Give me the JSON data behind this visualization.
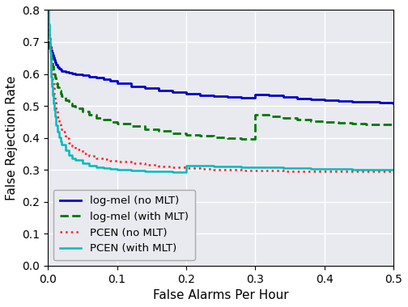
{
  "title": "",
  "xlabel": "False Alarms Per Hour",
  "ylabel": "False Rejection Rate",
  "xlim": [
    0.0,
    0.5
  ],
  "ylim": [
    0.0,
    0.8
  ],
  "xticks": [
    0.0,
    0.1,
    0.2,
    0.3,
    0.4,
    0.5
  ],
  "yticks": [
    0.0,
    0.1,
    0.2,
    0.3,
    0.4,
    0.5,
    0.6,
    0.7,
    0.8
  ],
  "background_color": "#e8eaf0",
  "grid_color": "#ffffff",
  "lines": [
    {
      "label": "log-mel (no MLT)",
      "color": "#0000cc",
      "linestyle": "solid",
      "linewidth": 2.0,
      "x": [
        0.0,
        0.001,
        0.002,
        0.003,
        0.004,
        0.005,
        0.006,
        0.007,
        0.008,
        0.009,
        0.01,
        0.012,
        0.014,
        0.016,
        0.018,
        0.02,
        0.025,
        0.03,
        0.035,
        0.04,
        0.05,
        0.06,
        0.07,
        0.08,
        0.09,
        0.1,
        0.12,
        0.14,
        0.16,
        0.18,
        0.2,
        0.22,
        0.24,
        0.26,
        0.28,
        0.3,
        0.32,
        0.34,
        0.36,
        0.38,
        0.4,
        0.42,
        0.44,
        0.46,
        0.48,
        0.5
      ],
      "y": [
        0.7,
        0.695,
        0.69,
        0.685,
        0.68,
        0.675,
        0.668,
        0.66,
        0.652,
        0.645,
        0.638,
        0.628,
        0.621,
        0.616,
        0.613,
        0.61,
        0.607,
        0.604,
        0.602,
        0.6,
        0.597,
        0.592,
        0.588,
        0.583,
        0.578,
        0.572,
        0.562,
        0.555,
        0.549,
        0.543,
        0.538,
        0.534,
        0.531,
        0.528,
        0.525,
        0.536,
        0.532,
        0.528,
        0.524,
        0.521,
        0.518,
        0.516,
        0.514,
        0.512,
        0.51,
        0.508
      ]
    },
    {
      "label": "log-mel (with MLT)",
      "color": "#007700",
      "linestyle": "dashed",
      "linewidth": 2.0,
      "x": [
        0.0,
        0.001,
        0.002,
        0.003,
        0.004,
        0.005,
        0.006,
        0.007,
        0.008,
        0.009,
        0.01,
        0.012,
        0.014,
        0.016,
        0.018,
        0.02,
        0.025,
        0.03,
        0.035,
        0.04,
        0.05,
        0.06,
        0.07,
        0.08,
        0.09,
        0.1,
        0.12,
        0.14,
        0.16,
        0.18,
        0.2,
        0.22,
        0.24,
        0.26,
        0.28,
        0.3,
        0.32,
        0.34,
        0.36,
        0.38,
        0.4,
        0.42,
        0.44,
        0.46,
        0.48,
        0.5
      ],
      "y": [
        0.695,
        0.688,
        0.68,
        0.671,
        0.661,
        0.65,
        0.638,
        0.625,
        0.612,
        0.6,
        0.588,
        0.572,
        0.558,
        0.547,
        0.538,
        0.53,
        0.518,
        0.508,
        0.5,
        0.493,
        0.482,
        0.472,
        0.463,
        0.456,
        0.45,
        0.445,
        0.436,
        0.428,
        0.421,
        0.415,
        0.41,
        0.406,
        0.402,
        0.399,
        0.396,
        0.472,
        0.467,
        0.462,
        0.457,
        0.453,
        0.45,
        0.447,
        0.445,
        0.443,
        0.442,
        0.44
      ]
    },
    {
      "label": "PCEN (no MLT)",
      "color": "#ff2020",
      "linestyle": "dotted",
      "linewidth": 1.8,
      "x": [
        0.0,
        0.001,
        0.002,
        0.003,
        0.004,
        0.005,
        0.006,
        0.007,
        0.008,
        0.009,
        0.01,
        0.012,
        0.014,
        0.016,
        0.018,
        0.02,
        0.025,
        0.03,
        0.035,
        0.04,
        0.05,
        0.06,
        0.07,
        0.08,
        0.09,
        0.1,
        0.12,
        0.14,
        0.16,
        0.18,
        0.2,
        0.22,
        0.24,
        0.26,
        0.28,
        0.3,
        0.32,
        0.34,
        0.36,
        0.38,
        0.4,
        0.42,
        0.44,
        0.46,
        0.48,
        0.5
      ],
      "y": [
        0.755,
        0.735,
        0.712,
        0.688,
        0.662,
        0.635,
        0.608,
        0.582,
        0.558,
        0.535,
        0.515,
        0.487,
        0.464,
        0.447,
        0.432,
        0.42,
        0.4,
        0.385,
        0.373,
        0.364,
        0.352,
        0.343,
        0.337,
        0.332,
        0.328,
        0.325,
        0.32,
        0.315,
        0.311,
        0.308,
        0.305,
        0.303,
        0.301,
        0.3,
        0.299,
        0.298,
        0.297,
        0.296,
        0.296,
        0.296,
        0.295,
        0.295,
        0.295,
        0.295,
        0.295,
        0.295
      ]
    },
    {
      "label": "PCEN (with MLT)",
      "color": "#00bbbb",
      "linestyle": "solid",
      "linewidth": 1.8,
      "x": [
        0.0,
        0.001,
        0.002,
        0.003,
        0.004,
        0.005,
        0.006,
        0.007,
        0.008,
        0.009,
        0.01,
        0.012,
        0.014,
        0.016,
        0.018,
        0.02,
        0.025,
        0.03,
        0.035,
        0.04,
        0.05,
        0.06,
        0.07,
        0.08,
        0.09,
        0.1,
        0.12,
        0.14,
        0.16,
        0.18,
        0.2,
        0.22,
        0.24,
        0.26,
        0.28,
        0.3,
        0.32,
        0.34,
        0.36,
        0.38,
        0.4,
        0.42,
        0.44,
        0.46,
        0.48,
        0.5
      ],
      "y": [
        0.8,
        0.755,
        0.71,
        0.668,
        0.628,
        0.592,
        0.56,
        0.532,
        0.508,
        0.487,
        0.468,
        0.44,
        0.418,
        0.402,
        0.389,
        0.378,
        0.36,
        0.346,
        0.337,
        0.33,
        0.32,
        0.312,
        0.308,
        0.305,
        0.303,
        0.301,
        0.298,
        0.296,
        0.295,
        0.294,
        0.314,
        0.312,
        0.311,
        0.31,
        0.309,
        0.308,
        0.307,
        0.306,
        0.305,
        0.304,
        0.303,
        0.302,
        0.301,
        0.3,
        0.3,
        0.3
      ]
    }
  ],
  "legend_loc": "lower left",
  "legend_fontsize": 9.5,
  "axis_fontsize": 11,
  "tick_fontsize": 10
}
